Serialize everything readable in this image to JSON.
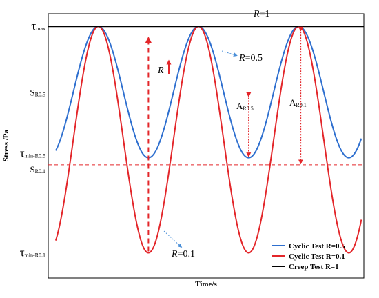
{
  "chart_data": {
    "type": "line",
    "xlabel": "Time/s",
    "ylabel": "Stress /Pa",
    "x_range": [
      0,
      12.6
    ],
    "y_range": [
      0,
      1.05
    ],
    "y_ticks": [
      {
        "label": "τ",
        "sub": "max",
        "value": 1.0
      },
      {
        "label": "S",
        "sub": "R0.5",
        "value": 0.739
      },
      {
        "label": "τ",
        "sub": "min-R0.5",
        "value": 0.478
      },
      {
        "label": "S",
        "sub": "R0.1",
        "value": 0.45
      },
      {
        "label": "τ",
        "sub": "min-R0.1",
        "value": 0.1
      }
    ],
    "series": [
      {
        "name": "Cyclic Test R=0.5",
        "color": "#2e6fcf",
        "min": 0.478,
        "max": 1.0,
        "style": "sine"
      },
      {
        "name": "Cyclic Test R=0.1",
        "color": "#e3262a",
        "min": 0.1,
        "max": 1.0,
        "style": "sine"
      },
      {
        "name": "Creep Test R=1",
        "color": "#000000",
        "value": 1.0,
        "style": "constant"
      }
    ],
    "reference_lines": [
      {
        "name": "S_R0.5",
        "value": 0.739,
        "color": "#2e6fcf",
        "dash": true
      },
      {
        "name": "S_R0.1",
        "value": 0.45,
        "color": "#e3262a",
        "dash": true
      }
    ],
    "annotations": {
      "r1": {
        "italic": "R",
        "rest": "=1"
      },
      "r05": {
        "italic": "R",
        "rest": "=0.5"
      },
      "r01": {
        "italic": "R",
        "rest": "=0.1"
      },
      "r_arrow": {
        "italic": "R"
      },
      "a05": {
        "label": "A",
        "sub": "R0.5"
      },
      "a01": {
        "label": "A",
        "sub": "R0.1"
      }
    },
    "legend": {
      "position": "bottom-right",
      "entries": [
        "Cyclic Test R=0.5",
        "Cyclic Test R=0.1",
        "Creep Test R=1"
      ]
    }
  }
}
